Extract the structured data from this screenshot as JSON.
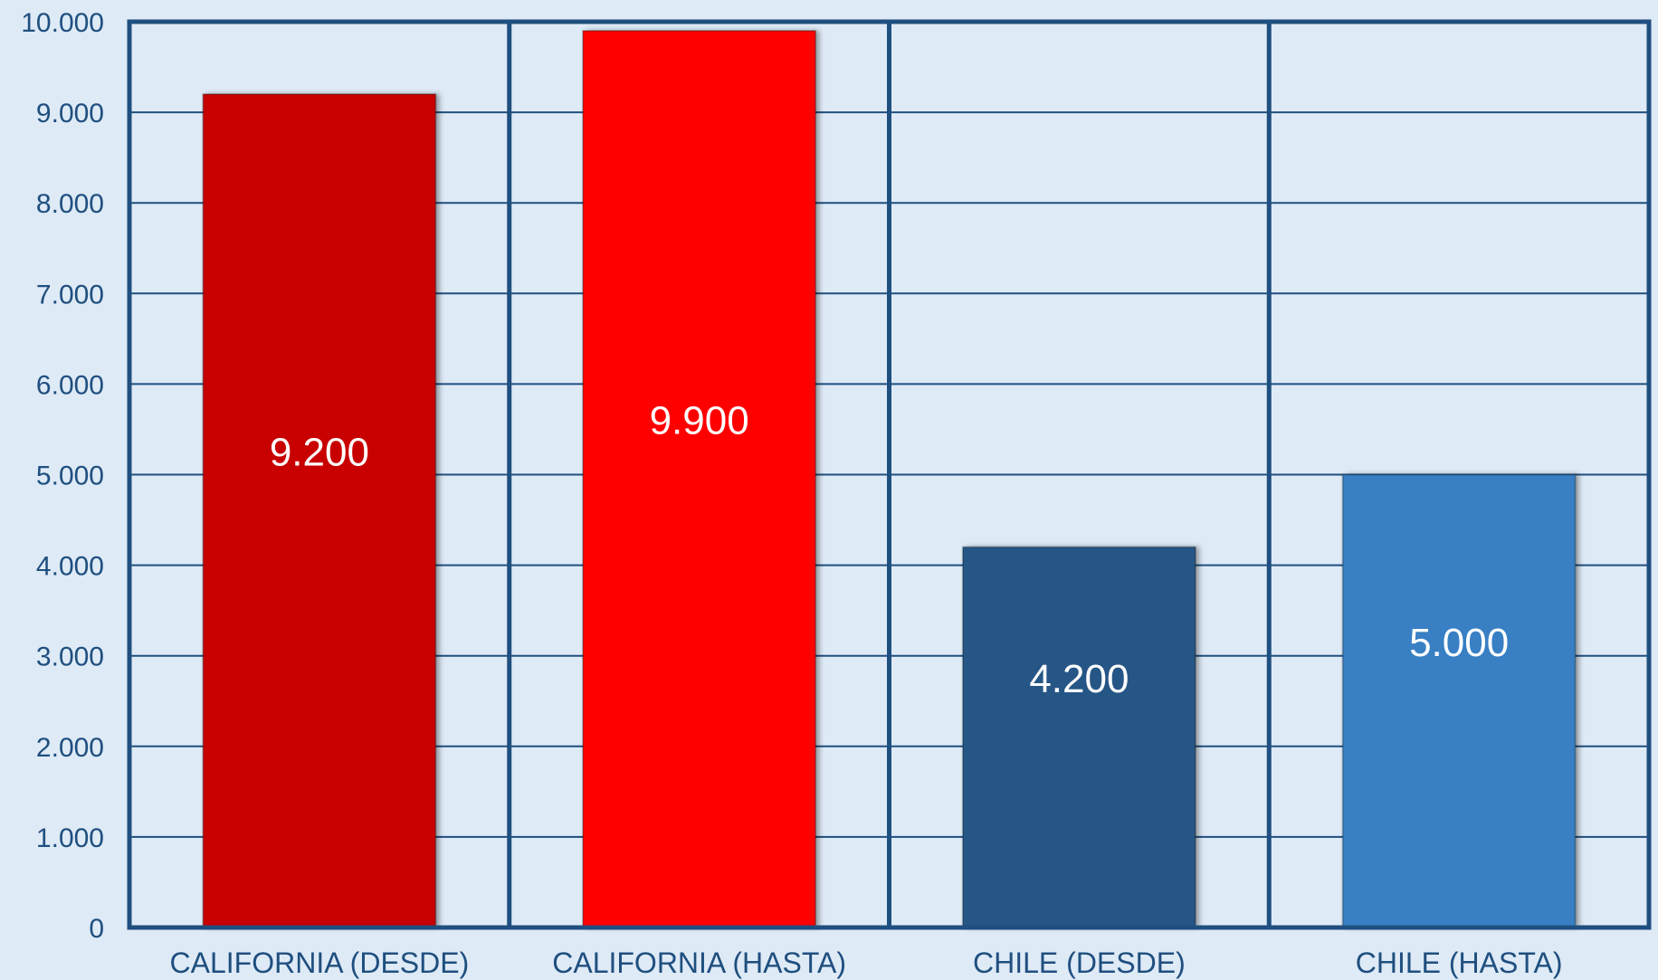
{
  "chart_data": {
    "type": "bar",
    "categories": [
      "CALIFORNIA (DESDE)",
      "CALIFORNIA (HASTA)",
      "CHILE (DESDE)",
      "CHILE (HASTA)"
    ],
    "values": [
      9200,
      9900,
      4200,
      5000
    ],
    "value_labels": [
      "9.200",
      "9.900",
      "4.200",
      "5.000"
    ],
    "bar_colors": [
      "#c80000",
      "#ff0505",
      "#265786",
      "#377fc4"
    ],
    "ylim": [
      0,
      10000
    ],
    "yticks": [
      0,
      1000,
      2000,
      3000,
      4000,
      5000,
      6000,
      7000,
      8000,
      9000,
      10000
    ],
    "ytick_labels": [
      "0",
      "1.000",
      "2.000",
      "3.000",
      "4.000",
      "5.000",
      "6.000",
      "7.000",
      "8.000",
      "9.000",
      "10.000"
    ],
    "grid": true,
    "legend": "none",
    "colors": {
      "background": "#deeaf6",
      "axis": "#1f4f7f",
      "text": "#1f4f7f"
    }
  }
}
